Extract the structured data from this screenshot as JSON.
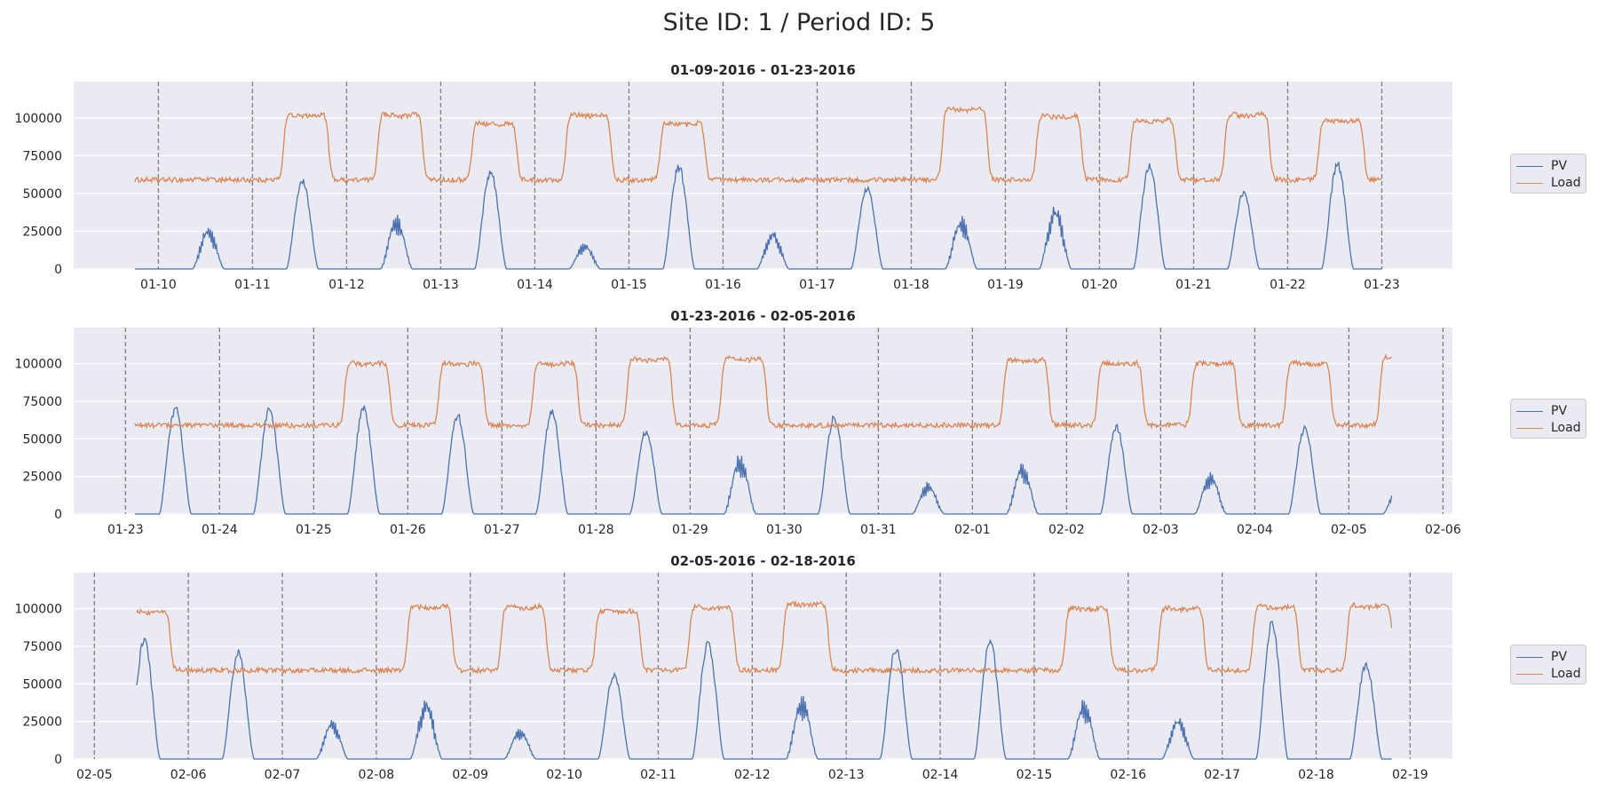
{
  "figure": {
    "title": "Site ID: 1 / Period ID: 5"
  },
  "colors": {
    "pv": "#4c72b0",
    "load": "#dd8452",
    "axes_bg": "#eaeaf2",
    "grid": "#ffffff",
    "vline": "#7f7f7f",
    "text": "#262626"
  },
  "legend": {
    "entries": [
      {
        "label": "PV",
        "color": "#4c72b0"
      },
      {
        "label": "Load",
        "color": "#dd8452"
      }
    ],
    "placement": "right"
  },
  "chart_data": [
    {
      "type": "line",
      "title": "01-09-2016 - 01-23-2016",
      "xlabel": "",
      "ylabel": "",
      "ylim": [
        0,
        124000
      ],
      "yticks": [
        0,
        25000,
        50000,
        75000,
        100000
      ],
      "ytick_labels": [
        "0",
        "25000",
        "50000",
        "75000",
        "100000"
      ],
      "xlim": [
        "2016-01-09",
        "2016-01-24"
      ],
      "xlim_days": [
        -0.9,
        13.75
      ],
      "data_range_days": [
        -0.25,
        13.0
      ],
      "xtick_labels": [
        "01-10",
        "01-11",
        "01-12",
        "01-13",
        "01-14",
        "01-15",
        "01-16",
        "01-17",
        "01-18",
        "01-19",
        "01-20",
        "01-21",
        "01-22",
        "01-23"
      ],
      "day_boundaries": [
        "2016-01-10",
        "2016-01-11",
        "2016-01-12",
        "2016-01-13",
        "2016-01-14",
        "2016-01-15",
        "2016-01-16",
        "2016-01-17",
        "2016-01-18",
        "2016-01-19",
        "2016-01-20",
        "2016-01-21",
        "2016-01-22",
        "2016-01-23"
      ],
      "series": [
        {
          "name": "PV",
          "daily_peak": [
            30000,
            60000,
            38000,
            66000,
            18000,
            70000,
            27000,
            55000,
            37000,
            46000,
            71000,
            52000,
            72000,
            0
          ]
        },
        {
          "name": "Load",
          "daily_peak": [
            60000,
            104000,
            104000,
            98000,
            104000,
            98000,
            58000,
            58000,
            108000,
            103000,
            100000,
            104000,
            100000,
            60000
          ],
          "base": 59000
        }
      ]
    },
    {
      "type": "line",
      "title": "01-23-2016 - 02-05-2016",
      "xlabel": "",
      "ylabel": "",
      "ylim": [
        0,
        124000
      ],
      "yticks": [
        0,
        25000,
        50000,
        75000,
        100000
      ],
      "ytick_labels": [
        "0",
        "25000",
        "50000",
        "75000",
        "100000"
      ],
      "xlim": [
        "2016-01-23",
        "2016-02-06"
      ],
      "xlim_days": [
        -0.55,
        14.1
      ],
      "data_range_days": [
        0.1,
        13.45
      ],
      "xtick_labels": [
        "01-23",
        "01-24",
        "01-25",
        "01-26",
        "01-27",
        "01-28",
        "01-29",
        "01-30",
        "01-31",
        "02-01",
        "02-02",
        "02-03",
        "02-04",
        "02-05",
        "02-06"
      ],
      "day_boundaries": [
        "2016-01-23",
        "2016-01-24",
        "2016-01-25",
        "2016-01-26",
        "2016-01-27",
        "2016-01-28",
        "2016-01-29",
        "2016-01-30",
        "2016-01-31",
        "2016-02-01",
        "2016-02-02",
        "2016-02-03",
        "2016-02-04",
        "2016-02-05",
        "2016-02-06"
      ],
      "series": [
        {
          "name": "PV",
          "daily_peak": [
            73000,
            72000,
            73000,
            68000,
            70000,
            57000,
            42000,
            66000,
            22000,
            36000,
            60000,
            29000,
            59000,
            21000
          ]
        },
        {
          "name": "Load",
          "daily_peak": [
            60000,
            58000,
            102000,
            102000,
            102000,
            105000,
            105000,
            60000,
            60000,
            104000,
            102000,
            102000,
            102000,
            106000
          ],
          "base": 59000
        }
      ]
    },
    {
      "type": "line",
      "title": "02-05-2016 - 02-18-2016",
      "xlabel": "",
      "ylabel": "",
      "ylim": [
        0,
        124000
      ],
      "yticks": [
        0,
        25000,
        50000,
        75000,
        100000
      ],
      "ytick_labels": [
        "0",
        "25000",
        "50000",
        "75000",
        "100000"
      ],
      "xlim": [
        "2016-02-05",
        "2016-02-19"
      ],
      "xlim_days": [
        -0.22,
        14.45
      ],
      "data_range_days": [
        0.45,
        13.8
      ],
      "xtick_labels": [
        "02-05",
        "02-06",
        "02-07",
        "02-08",
        "02-09",
        "02-10",
        "02-11",
        "02-12",
        "02-13",
        "02-14",
        "02-15",
        "02-16",
        "02-17",
        "02-18",
        "02-19"
      ],
      "day_boundaries": [
        "2016-02-05",
        "2016-02-06",
        "2016-02-07",
        "2016-02-08",
        "2016-02-09",
        "2016-02-10",
        "2016-02-11",
        "2016-02-12",
        "2016-02-13",
        "2016-02-14",
        "2016-02-15",
        "2016-02-16",
        "2016-02-17",
        "2016-02-18",
        "2016-02-19"
      ],
      "series": [
        {
          "name": "PV",
          "daily_peak": [
            81000,
            73000,
            28000,
            42000,
            22000,
            58000,
            79000,
            45000,
            76000,
            81000,
            42000,
            30000,
            93000,
            65000
          ]
        },
        {
          "name": "Load",
          "daily_peak": [
            100000,
            60000,
            60000,
            103000,
            103000,
            100000,
            103000,
            105000,
            60000,
            59000,
            102000,
            102000,
            103000,
            104000
          ],
          "base": 59000
        }
      ]
    }
  ]
}
